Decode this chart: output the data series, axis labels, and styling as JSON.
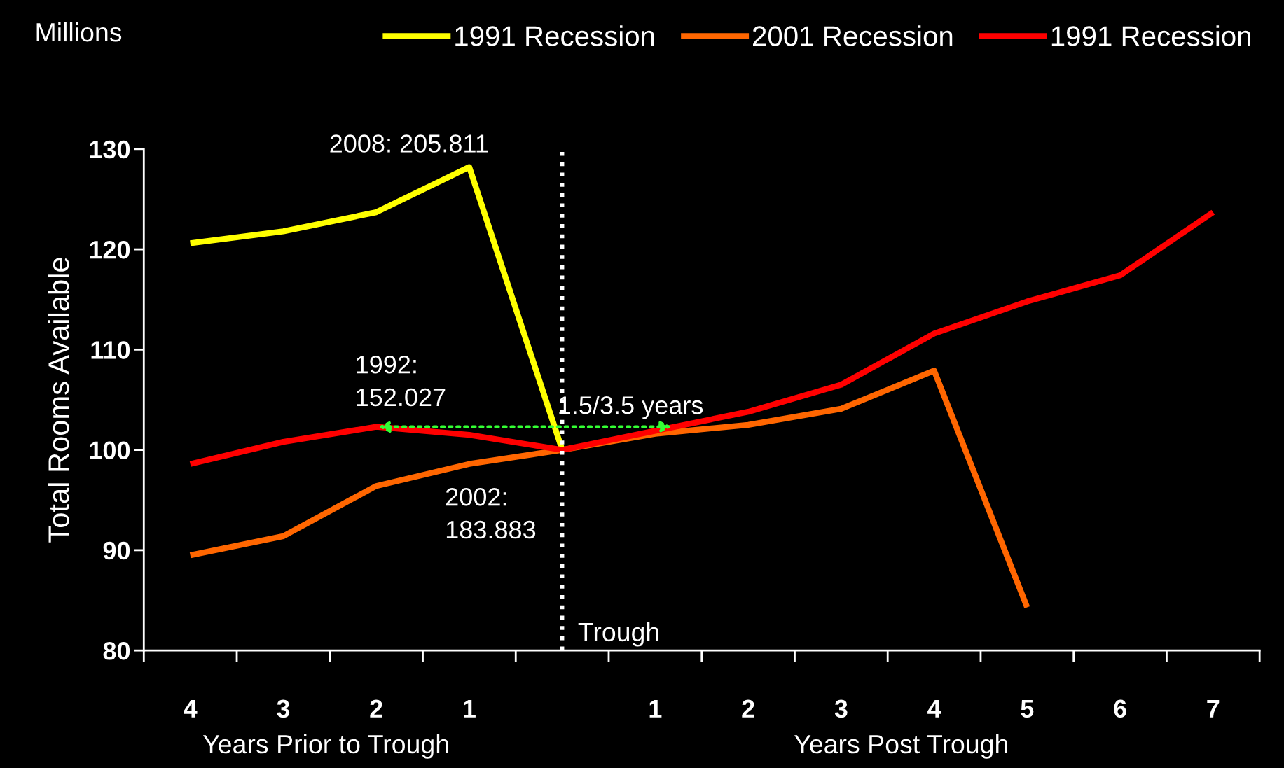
{
  "chart_data": {
    "type": "line",
    "ylabel": "Total Rooms Available",
    "x": [
      -4,
      -3,
      -2,
      -1,
      0,
      1,
      2,
      3,
      4,
      5,
      6,
      7
    ],
    "xlim": [
      -4.5,
      7.5
    ],
    "xticks": [
      {
        "value": -4,
        "label": "4"
      },
      {
        "value": -3,
        "label": "3"
      },
      {
        "value": -2,
        "label": "2"
      },
      {
        "value": -1,
        "label": "1"
      },
      {
        "value": 1,
        "label": "1"
      },
      {
        "value": 2,
        "label": "2"
      },
      {
        "value": 3,
        "label": "3"
      },
      {
        "value": 4,
        "label": "4"
      },
      {
        "value": 5,
        "label": "5"
      },
      {
        "value": 6,
        "label": "6"
      },
      {
        "value": 7,
        "label": "7"
      }
    ],
    "ylim": [
      80,
      130
    ],
    "yticks": [
      80,
      90,
      100,
      110,
      120,
      130
    ],
    "grid": false,
    "legend": "top right",
    "marker": "none",
    "line_style": "solid",
    "series": [
      {
        "name": "1991 Recession",
        "color": "#ffff00",
        "values": [
          120.6,
          121.8,
          123.7,
          128.2,
          100,
          null,
          null,
          null,
          null,
          null,
          null,
          null
        ]
      },
      {
        "name": "2001 Recession",
        "color": "#ff6600",
        "values": [
          89.5,
          91.4,
          96.4,
          98.6,
          100,
          101.6,
          102.5,
          104.1,
          107.9,
          84.3,
          null,
          null
        ]
      },
      {
        "name": "1991 Recession",
        "color": "#ff0000",
        "values": [
          98.6,
          100.8,
          102.3,
          101.5,
          100,
          101.9,
          103.8,
          106.5,
          111.6,
          114.8,
          117.4,
          123.7
        ]
      }
    ],
    "ref_lines": [
      {
        "axis": "x",
        "value": 0,
        "label": "Trough",
        "color": "#ffffff",
        "line_style": "dotted"
      }
    ],
    "annotations": [
      "Millions",
      "Years Prior to Trough",
      "Years Post Trough",
      {
        "text": "2008: 205.811",
        "x": -1,
        "y": 128.2
      },
      {
        "text": "1992:\n152.027",
        "x": -2,
        "y": 102.3
      },
      {
        "text": "2002:\n183.883",
        "x": -1,
        "y": 98.6
      },
      {
        "text": "1.5/3.5 years",
        "x": 0,
        "y": 102.3
      }
    ]
  }
}
